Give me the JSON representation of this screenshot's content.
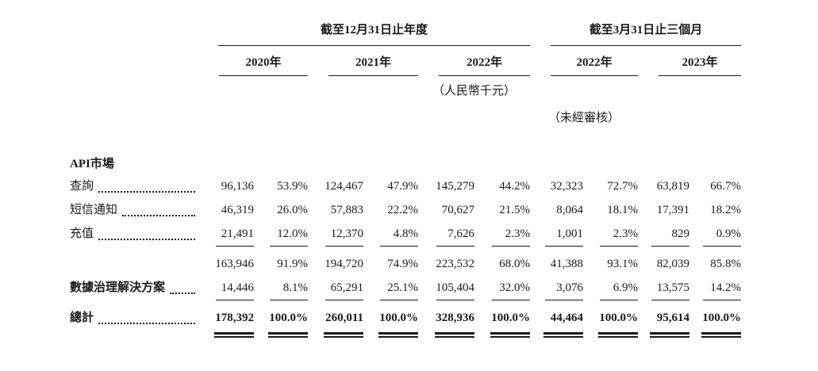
{
  "colors": {
    "ink": "#1a1a1a",
    "background": "#ffffff"
  },
  "header": {
    "annual_title": "截至12月31日止年度",
    "quarter_title": "截至3月31日止三個月",
    "years": [
      "2020年",
      "2021年",
      "2022年",
      "2022年",
      "2023年"
    ],
    "currency_note": "（人民幣千元）",
    "audit_note": "（未經審核）"
  },
  "rows": {
    "api_header": {
      "label": "API市場"
    },
    "query": {
      "label": "查詢",
      "values": [
        "96,136",
        "53.9%",
        "124,467",
        "47.9%",
        "145,279",
        "44.2%",
        "32,323",
        "72.7%",
        "63,819",
        "66.7%"
      ]
    },
    "sms": {
      "label": "短信通知",
      "values": [
        "46,319",
        "26.0%",
        "57,883",
        "22.2%",
        "70,627",
        "21.5%",
        "8,064",
        "18.1%",
        "17,391",
        "18.2%"
      ]
    },
    "topup": {
      "label": "充值",
      "values": [
        "21,491",
        "12.0%",
        "12,370",
        "4.8%",
        "7,626",
        "2.3%",
        "1,001",
        "2.3%",
        "829",
        "0.9%"
      ]
    },
    "subtotal": {
      "label": "",
      "values": [
        "163,946",
        "91.9%",
        "194,720",
        "74.9%",
        "223,532",
        "68.0%",
        "41,388",
        "93.1%",
        "82,039",
        "85.8%"
      ]
    },
    "data_gov": {
      "label": "數據治理解決方案",
      "values": [
        "14,446",
        "8.1%",
        "65,291",
        "25.1%",
        "105,404",
        "32.0%",
        "3,076",
        "6.9%",
        "13,575",
        "14.2%"
      ]
    },
    "total": {
      "label": "總計",
      "values": [
        "178,392",
        "100.0%",
        "260,011",
        "100.0%",
        "328,936",
        "100.0%",
        "44,464",
        "100.0%",
        "95,614",
        "100.0%"
      ]
    }
  }
}
